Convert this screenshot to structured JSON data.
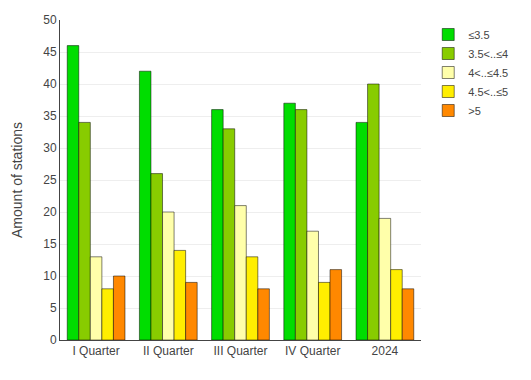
{
  "chart_data": {
    "type": "bar",
    "categories": [
      "I Quarter",
      "II Quarter",
      "III Quarter",
      "IV Quarter",
      "2024"
    ],
    "series": [
      {
        "name": "≤3.5",
        "color": "#00dd00",
        "values": [
          46,
          42,
          36,
          37,
          34
        ]
      },
      {
        "name": "3.5<..≤4",
        "color": "#88cc00",
        "values": [
          34,
          26,
          33,
          36,
          40
        ]
      },
      {
        "name": "4<..≤4.5",
        "color": "#ffffaa",
        "values": [
          13,
          20,
          21,
          17,
          19
        ]
      },
      {
        "name": "4.5<..≤5",
        "color": "#ffee00",
        "values": [
          8,
          14,
          13,
          9,
          11
        ]
      },
      {
        "name": ">5",
        "color": "#ff8800",
        "values": [
          10,
          9,
          8,
          11,
          8
        ]
      }
    ],
    "ylabel": "Amount of stations",
    "ylim": [
      0,
      50
    ],
    "yticks": [
      0,
      5,
      10,
      15,
      20,
      25,
      30,
      35,
      40,
      45,
      50
    ],
    "grid": true,
    "legend": "upper right"
  }
}
